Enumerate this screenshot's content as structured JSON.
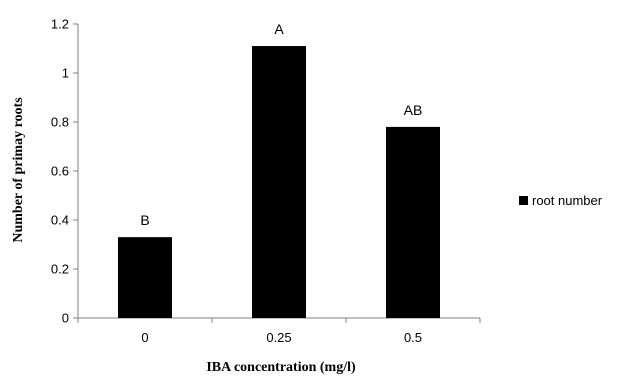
{
  "chart_data": {
    "type": "bar",
    "title": "",
    "xlabel": "IBA concentration (mg/l)",
    "ylabel": "Number of primay roots",
    "categories": [
      "0",
      "0.25",
      "0.5"
    ],
    "series": [
      {
        "name": "root number",
        "values": [
          0.33,
          1.11,
          0.78
        ],
        "color": "#000000"
      }
    ],
    "annotations": [
      "B",
      "A",
      "AB"
    ],
    "ylim": [
      0,
      1.2
    ],
    "yticks": [
      "0",
      "0.2",
      "0.4",
      "0.6",
      "0.8",
      "1",
      "1.2"
    ],
    "grid": false,
    "legend_position": "right"
  }
}
